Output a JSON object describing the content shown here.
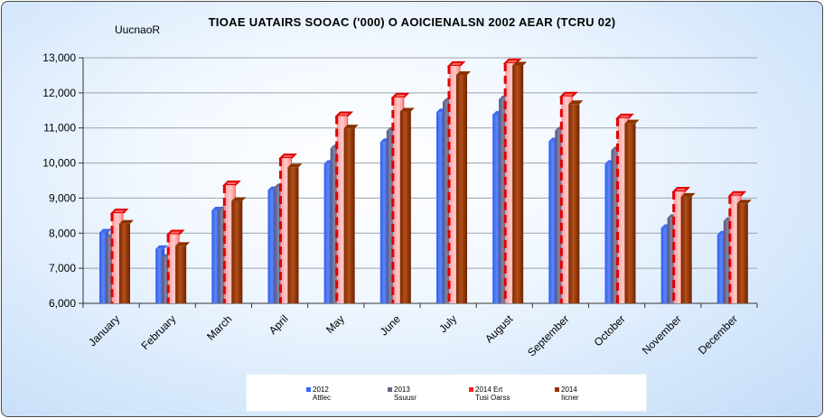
{
  "title": "TIOAE UATAIRS SOOAC ('000) O AOICIENALSN 2002 AEAR (TCRU 02)",
  "unit_label": "UucnaoR",
  "legend": [
    {
      "line1": "2012",
      "line2": "Attlec",
      "color": "#3366ff"
    },
    {
      "line1": "2013",
      "line2": "Ssuusr",
      "color": "#666688"
    },
    {
      "line1": "2014 Ert",
      "line2": "Tusi Oarss",
      "color": "#ff1a1a"
    },
    {
      "line1": "2014",
      "line2": "Iicner",
      "color": "#993300"
    }
  ],
  "chart_data": {
    "type": "bar",
    "title": "TIOAE UATAIRS SOOAC ('000) O AOICIENALSN 2002 AEAR (TCRU 02)",
    "xlabel": "",
    "ylabel": "UucnaoR",
    "ylim": [
      6000,
      13000
    ],
    "yticks": [
      6000,
      7000,
      8000,
      9000,
      10000,
      11000,
      12000,
      13000
    ],
    "ytick_labels": [
      "6,000",
      "7,000",
      "8,000",
      "9,000",
      "10,000",
      "11,000",
      "12,000",
      "13,000"
    ],
    "grid": true,
    "legend_position": "bottom",
    "categories": [
      "January",
      "February",
      "March",
      "April",
      "May",
      "June",
      "July",
      "August",
      "September",
      "October",
      "November",
      "December"
    ],
    "series": [
      {
        "name": "2012 Attlec",
        "values": [
          8020,
          7550,
          8650,
          9230,
          9980,
          10600,
          11450,
          11380,
          10620,
          9980,
          8150,
          7960
        ]
      },
      {
        "name": "2013 Ssuusr",
        "values": [
          7870,
          7300,
          8660,
          9310,
          10420,
          10920,
          11750,
          11820,
          10930,
          10370,
          8440,
          8350
        ]
      },
      {
        "name": "2014 Ert Tusi Oarss",
        "values": [
          8570,
          7970,
          9370,
          10140,
          11340,
          11870,
          12770,
          12850,
          11900,
          11280,
          9190,
          9070
        ]
      },
      {
        "name": "2014 Iicner",
        "values": [
          8270,
          7640,
          8920,
          9880,
          10990,
          11470,
          12510,
          12780,
          11680,
          11130,
          9040,
          8850
        ]
      }
    ]
  }
}
